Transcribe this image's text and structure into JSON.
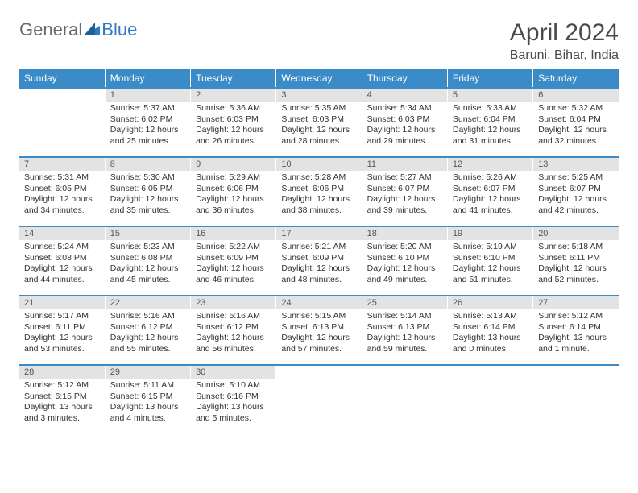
{
  "logo": {
    "general": "General",
    "blue": "Blue"
  },
  "title": "April 2024",
  "location": "Baruni, Bihar, India",
  "colors": {
    "header_bg": "#3b8bc8",
    "header_text": "#ffffff",
    "daynum_bg": "#e3e3e3",
    "daynum_text": "#555555",
    "border": "#3b8bc8",
    "text": "#333333",
    "logo_gray": "#6a6a6a",
    "logo_blue": "#2f7bbf"
  },
  "weekdays": [
    "Sunday",
    "Monday",
    "Tuesday",
    "Wednesday",
    "Thursday",
    "Friday",
    "Saturday"
  ],
  "weeks": [
    [
      null,
      {
        "n": "1",
        "sr": "Sunrise: 5:37 AM",
        "ss": "Sunset: 6:02 PM",
        "d1": "Daylight: 12 hours",
        "d2": "and 25 minutes."
      },
      {
        "n": "2",
        "sr": "Sunrise: 5:36 AM",
        "ss": "Sunset: 6:03 PM",
        "d1": "Daylight: 12 hours",
        "d2": "and 26 minutes."
      },
      {
        "n": "3",
        "sr": "Sunrise: 5:35 AM",
        "ss": "Sunset: 6:03 PM",
        "d1": "Daylight: 12 hours",
        "d2": "and 28 minutes."
      },
      {
        "n": "4",
        "sr": "Sunrise: 5:34 AM",
        "ss": "Sunset: 6:03 PM",
        "d1": "Daylight: 12 hours",
        "d2": "and 29 minutes."
      },
      {
        "n": "5",
        "sr": "Sunrise: 5:33 AM",
        "ss": "Sunset: 6:04 PM",
        "d1": "Daylight: 12 hours",
        "d2": "and 31 minutes."
      },
      {
        "n": "6",
        "sr": "Sunrise: 5:32 AM",
        "ss": "Sunset: 6:04 PM",
        "d1": "Daylight: 12 hours",
        "d2": "and 32 minutes."
      }
    ],
    [
      {
        "n": "7",
        "sr": "Sunrise: 5:31 AM",
        "ss": "Sunset: 6:05 PM",
        "d1": "Daylight: 12 hours",
        "d2": "and 34 minutes."
      },
      {
        "n": "8",
        "sr": "Sunrise: 5:30 AM",
        "ss": "Sunset: 6:05 PM",
        "d1": "Daylight: 12 hours",
        "d2": "and 35 minutes."
      },
      {
        "n": "9",
        "sr": "Sunrise: 5:29 AM",
        "ss": "Sunset: 6:06 PM",
        "d1": "Daylight: 12 hours",
        "d2": "and 36 minutes."
      },
      {
        "n": "10",
        "sr": "Sunrise: 5:28 AM",
        "ss": "Sunset: 6:06 PM",
        "d1": "Daylight: 12 hours",
        "d2": "and 38 minutes."
      },
      {
        "n": "11",
        "sr": "Sunrise: 5:27 AM",
        "ss": "Sunset: 6:07 PM",
        "d1": "Daylight: 12 hours",
        "d2": "and 39 minutes."
      },
      {
        "n": "12",
        "sr": "Sunrise: 5:26 AM",
        "ss": "Sunset: 6:07 PM",
        "d1": "Daylight: 12 hours",
        "d2": "and 41 minutes."
      },
      {
        "n": "13",
        "sr": "Sunrise: 5:25 AM",
        "ss": "Sunset: 6:07 PM",
        "d1": "Daylight: 12 hours",
        "d2": "and 42 minutes."
      }
    ],
    [
      {
        "n": "14",
        "sr": "Sunrise: 5:24 AM",
        "ss": "Sunset: 6:08 PM",
        "d1": "Daylight: 12 hours",
        "d2": "and 44 minutes."
      },
      {
        "n": "15",
        "sr": "Sunrise: 5:23 AM",
        "ss": "Sunset: 6:08 PM",
        "d1": "Daylight: 12 hours",
        "d2": "and 45 minutes."
      },
      {
        "n": "16",
        "sr": "Sunrise: 5:22 AM",
        "ss": "Sunset: 6:09 PM",
        "d1": "Daylight: 12 hours",
        "d2": "and 46 minutes."
      },
      {
        "n": "17",
        "sr": "Sunrise: 5:21 AM",
        "ss": "Sunset: 6:09 PM",
        "d1": "Daylight: 12 hours",
        "d2": "and 48 minutes."
      },
      {
        "n": "18",
        "sr": "Sunrise: 5:20 AM",
        "ss": "Sunset: 6:10 PM",
        "d1": "Daylight: 12 hours",
        "d2": "and 49 minutes."
      },
      {
        "n": "19",
        "sr": "Sunrise: 5:19 AM",
        "ss": "Sunset: 6:10 PM",
        "d1": "Daylight: 12 hours",
        "d2": "and 51 minutes."
      },
      {
        "n": "20",
        "sr": "Sunrise: 5:18 AM",
        "ss": "Sunset: 6:11 PM",
        "d1": "Daylight: 12 hours",
        "d2": "and 52 minutes."
      }
    ],
    [
      {
        "n": "21",
        "sr": "Sunrise: 5:17 AM",
        "ss": "Sunset: 6:11 PM",
        "d1": "Daylight: 12 hours",
        "d2": "and 53 minutes."
      },
      {
        "n": "22",
        "sr": "Sunrise: 5:16 AM",
        "ss": "Sunset: 6:12 PM",
        "d1": "Daylight: 12 hours",
        "d2": "and 55 minutes."
      },
      {
        "n": "23",
        "sr": "Sunrise: 5:16 AM",
        "ss": "Sunset: 6:12 PM",
        "d1": "Daylight: 12 hours",
        "d2": "and 56 minutes."
      },
      {
        "n": "24",
        "sr": "Sunrise: 5:15 AM",
        "ss": "Sunset: 6:13 PM",
        "d1": "Daylight: 12 hours",
        "d2": "and 57 minutes."
      },
      {
        "n": "25",
        "sr": "Sunrise: 5:14 AM",
        "ss": "Sunset: 6:13 PM",
        "d1": "Daylight: 12 hours",
        "d2": "and 59 minutes."
      },
      {
        "n": "26",
        "sr": "Sunrise: 5:13 AM",
        "ss": "Sunset: 6:14 PM",
        "d1": "Daylight: 13 hours",
        "d2": "and 0 minutes."
      },
      {
        "n": "27",
        "sr": "Sunrise: 5:12 AM",
        "ss": "Sunset: 6:14 PM",
        "d1": "Daylight: 13 hours",
        "d2": "and 1 minute."
      }
    ],
    [
      {
        "n": "28",
        "sr": "Sunrise: 5:12 AM",
        "ss": "Sunset: 6:15 PM",
        "d1": "Daylight: 13 hours",
        "d2": "and 3 minutes."
      },
      {
        "n": "29",
        "sr": "Sunrise: 5:11 AM",
        "ss": "Sunset: 6:15 PM",
        "d1": "Daylight: 13 hours",
        "d2": "and 4 minutes."
      },
      {
        "n": "30",
        "sr": "Sunrise: 5:10 AM",
        "ss": "Sunset: 6:16 PM",
        "d1": "Daylight: 13 hours",
        "d2": "and 5 minutes."
      },
      null,
      null,
      null,
      null
    ]
  ]
}
